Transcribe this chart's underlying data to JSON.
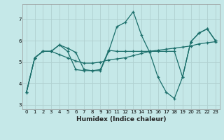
{
  "xlabel": "Humidex (Indice chaleur)",
  "background_color": "#c5e8e8",
  "grid_color": "#b0d0d0",
  "line_color": "#1a6e6a",
  "xlim": [
    -0.5,
    23.5
  ],
  "ylim": [
    2.8,
    7.7
  ],
  "xticks": [
    0,
    1,
    2,
    3,
    4,
    5,
    6,
    7,
    8,
    9,
    10,
    11,
    12,
    13,
    14,
    15,
    16,
    17,
    18,
    19,
    20,
    21,
    22,
    23
  ],
  "yticks": [
    3,
    4,
    5,
    6,
    7
  ],
  "series": [
    [
      3.6,
      5.2,
      5.5,
      5.5,
      5.8,
      5.65,
      5.45,
      4.65,
      4.6,
      4.6,
      5.5,
      6.65,
      6.85,
      7.35,
      6.25,
      5.45,
      4.3,
      3.6,
      3.3,
      4.3,
      5.95,
      6.35,
      6.55,
      6.0
    ],
    [
      3.6,
      5.2,
      5.5,
      5.5,
      5.35,
      5.2,
      5.05,
      4.95,
      4.95,
      5.0,
      5.1,
      5.15,
      5.2,
      5.3,
      5.4,
      5.5,
      5.55,
      5.6,
      5.65,
      5.7,
      5.75,
      5.85,
      5.9,
      5.95
    ],
    [
      3.6,
      5.2,
      5.5,
      5.5,
      5.8,
      5.5,
      4.65,
      4.6,
      4.6,
      4.65,
      5.55,
      5.5,
      5.5,
      5.5,
      5.5,
      5.5,
      5.5,
      5.5,
      5.5,
      4.3,
      5.95,
      6.35,
      6.55,
      6.0
    ]
  ]
}
